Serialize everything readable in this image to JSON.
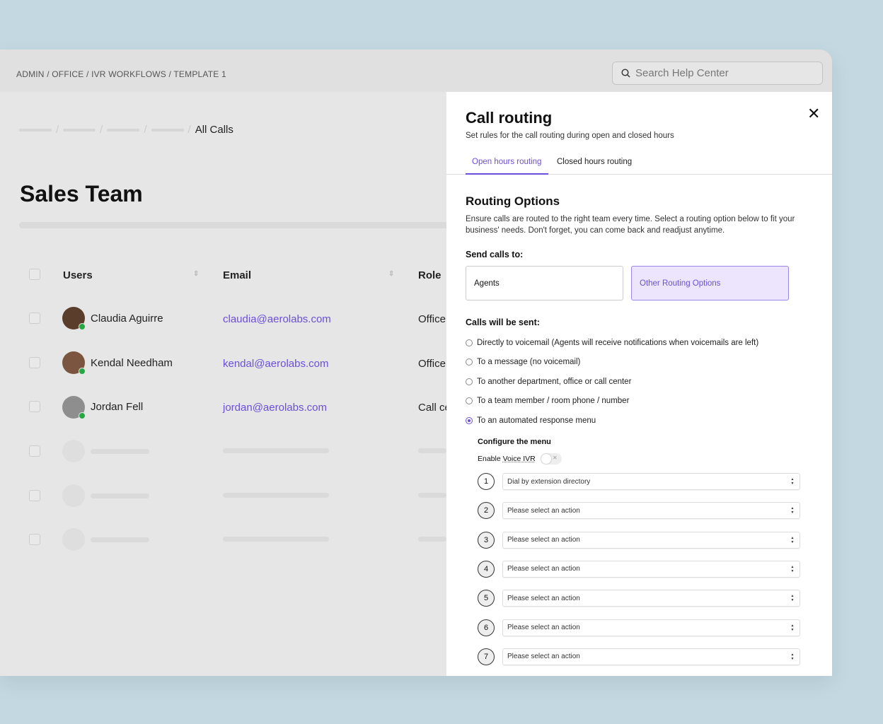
{
  "header": {
    "breadcrumb": "ADMIN / OFFICE / IVR WORKFLOWS / TEMPLATE 1",
    "search_placeholder": "Search Help Center"
  },
  "main": {
    "subcrumb_current": "All Calls",
    "title": "Sales Team",
    "columns": [
      "Users",
      "Email",
      "Role"
    ],
    "rows": [
      {
        "name": "Claudia Aguirre",
        "email": "claudia@aerolabs.com",
        "role": "Office",
        "status": "online"
      },
      {
        "name": "Kendal Needham",
        "email": "kendal@aerolabs.com",
        "role": "Office",
        "status": "online"
      },
      {
        "name": "Jordan Fell",
        "email": "jordan@aerolabs.com",
        "role": "Call center",
        "status": "online"
      }
    ]
  },
  "panel": {
    "title": "Call routing",
    "subtitle": "Set rules for the call routing during open and closed hours",
    "tabs": [
      {
        "label": "Open hours routing",
        "active": true
      },
      {
        "label": "Closed hours routing",
        "active": false
      }
    ],
    "section_title": "Routing Options",
    "description": "Ensure calls are routed to the right team every time. Select a routing option below to fit your business' needs. Don't forget, you can come back and readjust anytime.",
    "send_label": "Send calls to:",
    "send_options": [
      {
        "label": "Agents",
        "selected": false
      },
      {
        "label": "Other Routing Options",
        "selected": true
      }
    ],
    "sent_label": "Calls will be sent:",
    "radios": [
      {
        "label": "Directly to voicemail (Agents will receive notifications when voicemails are left)",
        "checked": false
      },
      {
        "label": "To a message (no voicemail)",
        "checked": false
      },
      {
        "label": "To another department, office or call center",
        "checked": false
      },
      {
        "label": "To a team member / room phone / number",
        "checked": false
      },
      {
        "label": "To an automated response menu",
        "checked": true
      }
    ],
    "configure_label": "Configure the menu",
    "ivr_prefix": "Enable ",
    "ivr_label": "Voice IVR",
    "ivr_enabled": false,
    "menu": [
      {
        "key": "1",
        "action": "Dial by extension directory"
      },
      {
        "key": "2",
        "action": "Please select an action"
      },
      {
        "key": "3",
        "action": "Please select an action"
      },
      {
        "key": "4",
        "action": "Please select an action"
      },
      {
        "key": "5",
        "action": "Please select an action"
      },
      {
        "key": "6",
        "action": "Please select an action"
      },
      {
        "key": "7",
        "action": "Please select an action"
      }
    ]
  },
  "colors": {
    "accent": "#6b4fd8",
    "online": "#28a745",
    "background": "#c3d8e1"
  }
}
